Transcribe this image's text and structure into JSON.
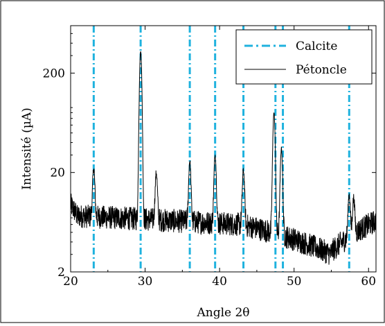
{
  "chart_data": {
    "type": "line",
    "xlabel": "Angle 2θ",
    "ylabel": "Intensité (µA)",
    "xlim": [
      20,
      61
    ],
    "ylim": [
      2,
      600
    ],
    "y_scale": "log",
    "grid": false,
    "legend_position": "top-right",
    "x_ticks": [
      20,
      30,
      40,
      50,
      60
    ],
    "y_ticks": [
      2,
      20,
      200
    ],
    "colors": {
      "calcite": "#1fb2de",
      "petoncle": "#000000",
      "frame": "#000000"
    },
    "legend": [
      {
        "label": "Calcite",
        "style": "dash-dot",
        "color": "#1fb2de"
      },
      {
        "label": "Pétoncle",
        "style": "solid",
        "color": "#000000"
      }
    ],
    "calcite_lines": [
      23.1,
      29.4,
      36.0,
      39.4,
      43.2,
      47.5,
      48.5,
      57.4
    ],
    "petoncle_peaks": [
      {
        "x": 23.1,
        "y": 22
      },
      {
        "x": 29.4,
        "y": 330
      },
      {
        "x": 31.5,
        "y": 20
      },
      {
        "x": 36.0,
        "y": 26
      },
      {
        "x": 39.4,
        "y": 30
      },
      {
        "x": 43.2,
        "y": 21
      },
      {
        "x": 47.3,
        "y": 80
      },
      {
        "x": 48.3,
        "y": 35
      },
      {
        "x": 57.4,
        "y": 12
      },
      {
        "x": 58.0,
        "y": 11
      }
    ]
  }
}
